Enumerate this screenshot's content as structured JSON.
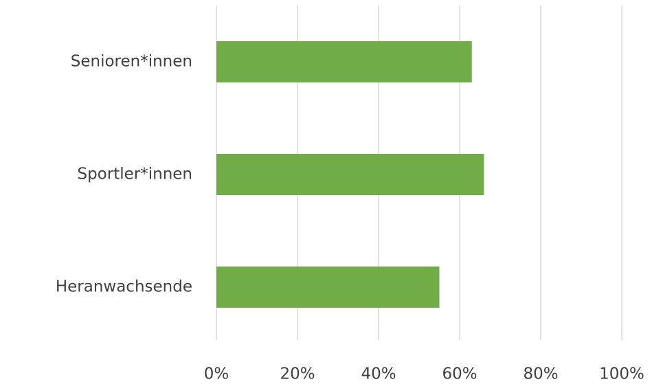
{
  "chart_data": {
    "type": "bar",
    "orientation": "horizontal",
    "categories": [
      "Senioren*innen",
      "Sportler*innen",
      "Heranwachsende"
    ],
    "values": [
      63,
      66,
      55
    ],
    "color": "#70ad47",
    "xlim": [
      0,
      100
    ],
    "xticks": [
      {
        "value": 0,
        "label": "0%"
      },
      {
        "value": 20,
        "label": "20%"
      },
      {
        "value": 40,
        "label": "40%"
      },
      {
        "value": 60,
        "label": "60%"
      },
      {
        "value": 80,
        "label": "80%"
      },
      {
        "value": 100,
        "label": "100%"
      }
    ],
    "grid": true
  }
}
